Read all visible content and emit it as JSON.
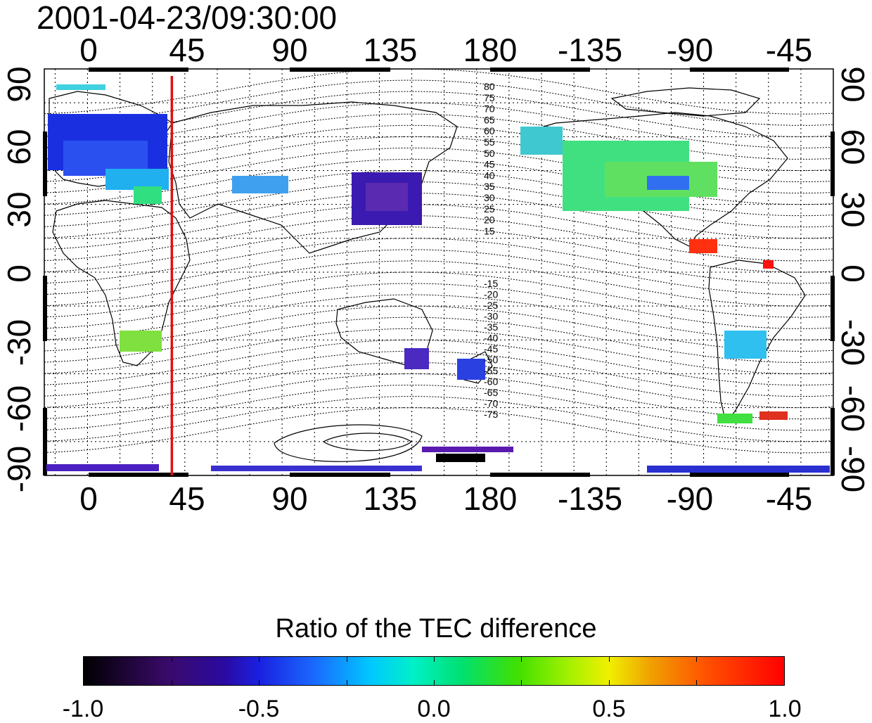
{
  "map": {
    "timestamp": "2001-04-23/09:30:00",
    "x_ticks_top": [
      "0",
      "45",
      "90",
      "135",
      "180",
      "-135",
      "-90",
      "-45"
    ],
    "x_ticks_bottom": [
      "0",
      "45",
      "90",
      "135",
      "180",
      "-135",
      "-90",
      "-45"
    ],
    "y_ticks_left": [
      "90",
      "60",
      "30",
      "0",
      "-30",
      "-60",
      "-90"
    ],
    "y_ticks_right": [
      "90",
      "60",
      "30",
      "0",
      "-30",
      "-60",
      "-90"
    ],
    "x_range_deg": [
      -20,
      345
    ],
    "y_range_deg": [
      -90,
      90
    ],
    "marker_longitude_deg": 39,
    "marker_color": "#e01010",
    "contour_labels_north": [
      "80",
      "75",
      "70",
      "65",
      "60",
      "55",
      "50",
      "45",
      "40",
      "35",
      "30",
      "25",
      "20",
      "15"
    ],
    "contour_labels_south": [
      "-15",
      "-20",
      "-25",
      "-30",
      "-35",
      "-40",
      "-45",
      "-50",
      "-55",
      "-60",
      "-65",
      "-70",
      "-75"
    ]
  },
  "colorbar": {
    "title": "Ratio of the TEC difference",
    "ticks": [
      "-1.0",
      "-0.5",
      "0.0",
      "0.5",
      "1.0"
    ],
    "range": [
      -1.0,
      1.0
    ],
    "colors": [
      "#000000",
      "#3a0a6a",
      "#1a20e0",
      "#00c8ff",
      "#00e070",
      "#a0f000",
      "#f0f000",
      "#ff5000",
      "#ff0000"
    ]
  }
}
